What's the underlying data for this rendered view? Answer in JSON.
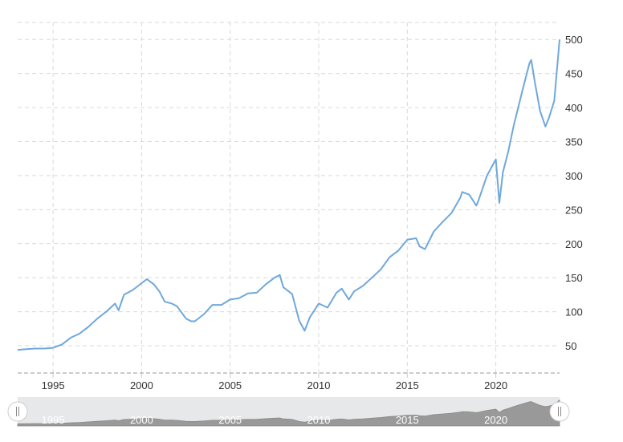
{
  "chart_data": {
    "type": "line",
    "title": "",
    "xlabel": "",
    "ylabel": "",
    "xlim": [
      1993.0,
      2023.6
    ],
    "ylim": [
      10,
      525
    ],
    "x_ticks": [
      {
        "value": 1995,
        "label": "1995"
      },
      {
        "value": 2000,
        "label": "2000"
      },
      {
        "value": 2005,
        "label": "2005"
      },
      {
        "value": 2010,
        "label": "2010"
      },
      {
        "value": 2015,
        "label": "2015"
      },
      {
        "value": 2020,
        "label": "2020"
      }
    ],
    "y_ticks": [
      {
        "value": 50,
        "label": "50"
      },
      {
        "value": 100,
        "label": "100"
      },
      {
        "value": 150,
        "label": "150"
      },
      {
        "value": 200,
        "label": "200"
      },
      {
        "value": 250,
        "label": "250"
      },
      {
        "value": 300,
        "label": "300"
      },
      {
        "value": 350,
        "label": "350"
      },
      {
        "value": 400,
        "label": "400"
      },
      {
        "value": 450,
        "label": "450"
      },
      {
        "value": 500,
        "label": "500"
      }
    ],
    "grid": true,
    "line_color": "#6fa8dc",
    "series": [
      {
        "x": [
          1993.0,
          1993.5,
          1994.0,
          1994.5,
          1995.0,
          1995.5,
          1996.0,
          1996.5,
          1997.0,
          1997.5,
          1997.8,
          1998.0,
          1998.5,
          1998.7,
          1999.0,
          1999.5,
          2000.0,
          2000.3,
          2000.7,
          2001.0,
          2001.3,
          2001.7,
          2002.0,
          2002.5,
          2002.8,
          2003.0,
          2003.5,
          2004.0,
          2004.5,
          2005.0,
          2005.5,
          2006.0,
          2006.5,
          2007.0,
          2007.5,
          2007.8,
          2008.0,
          2008.5,
          2008.9,
          2009.2,
          2009.5,
          2010.0,
          2010.5,
          2011.0,
          2011.3,
          2011.7,
          2012.0,
          2012.5,
          2013.0,
          2013.5,
          2014.0,
          2014.5,
          2015.0,
          2015.5,
          2015.7,
          2016.0,
          2016.5,
          2017.0,
          2017.5,
          2018.0,
          2018.1,
          2018.5,
          2018.9,
          2019.0,
          2019.5,
          2020.0,
          2020.2,
          2020.4,
          2020.7,
          2021.0,
          2021.5,
          2021.9,
          2022.0,
          2022.2,
          2022.5,
          2022.8,
          2023.0,
          2023.3,
          2023.6
        ],
        "y": [
          44,
          45,
          46,
          46,
          47,
          52,
          62,
          68,
          78,
          90,
          96,
          100,
          112,
          102,
          125,
          132,
          142,
          148,
          140,
          130,
          115,
          112,
          108,
          90,
          86,
          86,
          96,
          110,
          110,
          118,
          120,
          127,
          128,
          140,
          150,
          154,
          136,
          126,
          87,
          72,
          92,
          112,
          106,
          128,
          134,
          118,
          130,
          138,
          150,
          162,
          180,
          190,
          206,
          208,
          196,
          192,
          218,
          232,
          245,
          268,
          276,
          272,
          256,
          262,
          300,
          324,
          260,
          305,
          335,
          372,
          425,
          465,
          470,
          438,
          395,
          372,
          385,
          410,
          500
        ]
      }
    ]
  }
}
